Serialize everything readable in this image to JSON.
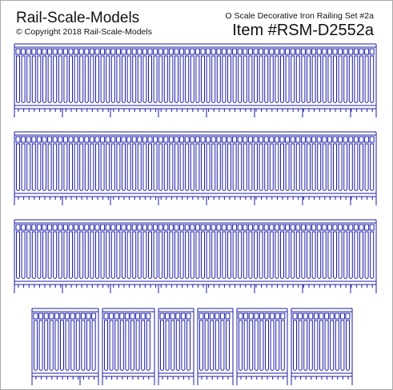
{
  "header": {
    "brand": "Rail-Scale-Models",
    "copyright": "© Copyright 2018 Rail-Scale-Models",
    "product": "O Scale Decorative Iron Railing Set #2a",
    "item": "Item #RSM-D2552a"
  }
}
